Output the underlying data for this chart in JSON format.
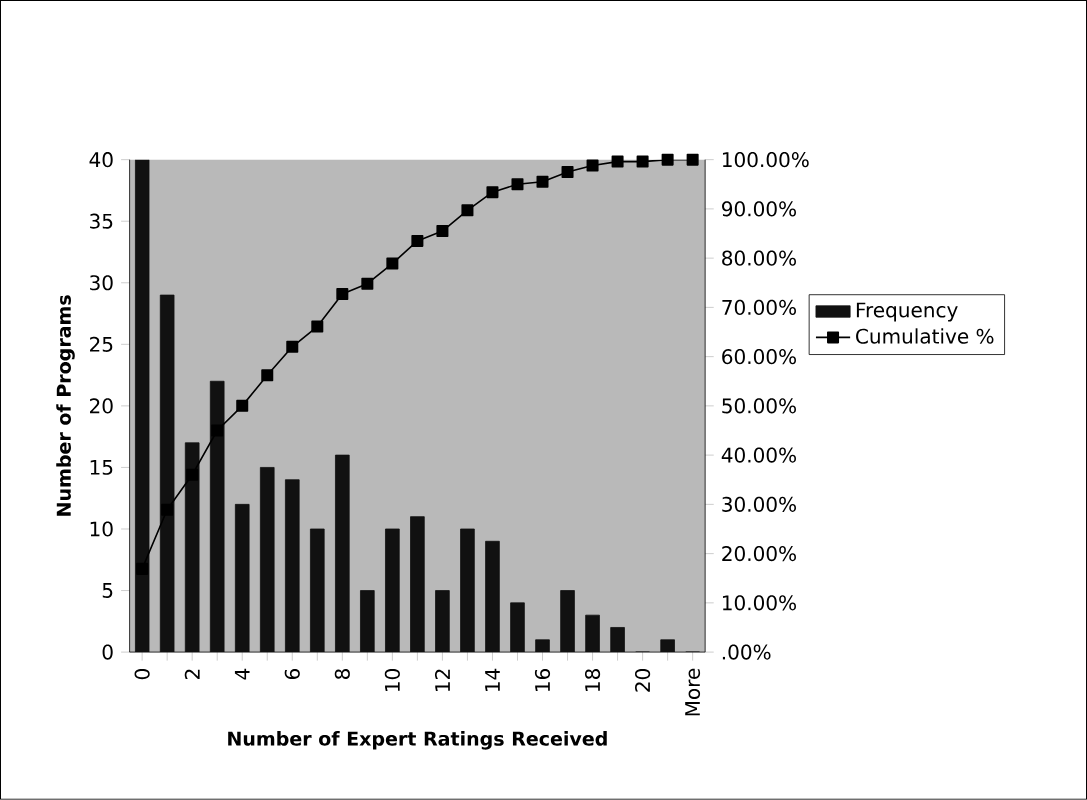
{
  "chart_data": {
    "type": "bar",
    "xlabel": "Number of Expert Ratings Received",
    "ylabel": "Number of Programs",
    "categories": [
      "0",
      null,
      "2",
      null,
      "4",
      null,
      "6",
      null,
      "8",
      null,
      "10",
      null,
      "12",
      null,
      "14",
      null,
      "16",
      null,
      "18",
      null,
      "20",
      null,
      "More"
    ],
    "series": [
      {
        "name": "Frequency",
        "color": "#111111",
        "values": [
          40,
          29,
          17,
          22,
          12,
          15,
          14,
          10,
          16,
          5,
          10,
          11,
          5,
          10,
          9,
          4,
          1,
          5,
          3,
          2,
          0,
          1,
          0
        ]
      },
      {
        "name": "Cumulative %",
        "type": "line",
        "axis": "y2",
        "color": "#000000",
        "values": [
          16.9,
          28.9,
          36.0,
          45.0,
          50.0,
          56.2,
          62.0,
          66.1,
          72.7,
          74.8,
          78.9,
          83.5,
          85.5,
          89.7,
          93.4,
          95.0,
          95.5,
          97.5,
          98.8,
          99.6,
          99.6,
          100,
          100
        ]
      }
    ],
    "ylim": [
      0,
      40
    ],
    "yticks": [
      0,
      5,
      10,
      15,
      20,
      25,
      30,
      35,
      40
    ],
    "y2lim": [
      0,
      100
    ],
    "y2ticks": [
      {
        "value": 0,
        "label": ".00%"
      },
      {
        "value": 10,
        "label": "10.00%"
      },
      {
        "value": 20,
        "label": "20.00%"
      },
      {
        "value": 30,
        "label": "30.00%"
      },
      {
        "value": 40,
        "label": "40.00%"
      },
      {
        "value": 50,
        "label": "50.00%"
      },
      {
        "value": 60,
        "label": "60.00%"
      },
      {
        "value": 70,
        "label": "70.00%"
      },
      {
        "value": 80,
        "label": "80.00%"
      },
      {
        "value": 90,
        "label": "90.00%"
      },
      {
        "value": 100,
        "label": "100.00%"
      }
    ],
    "marker": "square",
    "legend": "right"
  }
}
